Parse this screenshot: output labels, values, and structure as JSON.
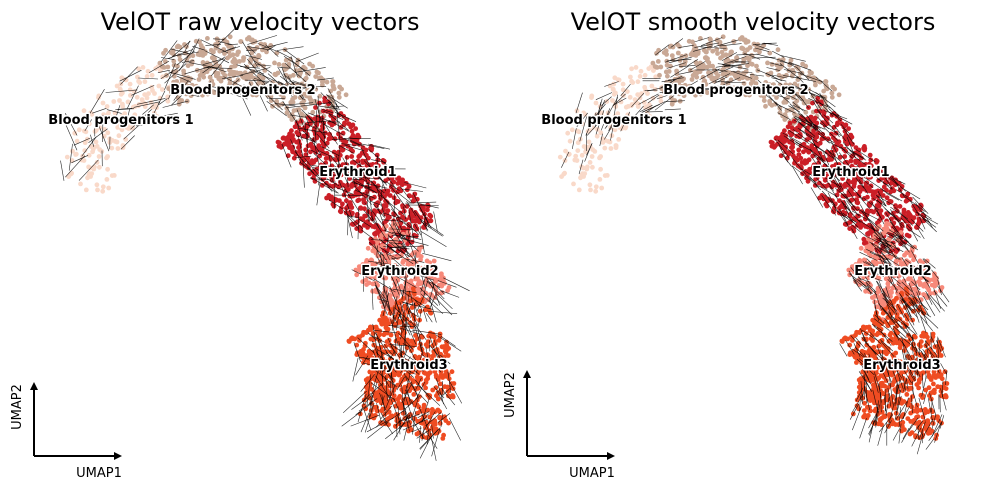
{
  "figure": {
    "colors": {
      "Blood progenitors 1": "#f9d9c9",
      "Blood progenitors 2": "#c9a895",
      "Erythroid1": "#cb1f27",
      "Erythroid2": "#f7897a",
      "Erythroid3": "#ef4c22"
    },
    "arrow_color": "#000000",
    "axis_labels": {
      "x": "UMAP1",
      "y": "UMAP2"
    }
  },
  "chart_data": [
    {
      "type": "scatter",
      "title": "VelOT raw velocity vectors",
      "xlabel": "UMAP1",
      "ylabel": "UMAP2",
      "grid": false,
      "legend": "on data",
      "vector_style": "raw",
      "clusters": [
        {
          "name": "Blood progenitors 1",
          "label": "Blood progenitors 1",
          "center": [
            1.2,
            7.6
          ],
          "extent": [
            [
              0.9,
              6.9
            ],
            [
              2.5,
              9.0
            ]
          ],
          "approx_points": 180
        },
        {
          "name": "Blood progenitors 2",
          "label": "Blood progenitors 2",
          "center": [
            3.3,
            8.5
          ],
          "extent": [
            [
              2.5,
              7.6
            ],
            [
              5.3,
              9.2
            ]
          ],
          "approx_points": 420
        },
        {
          "name": "Erythroid1",
          "label": "Erythroid1",
          "center": [
            6.1,
            6.6
          ],
          "extent": [
            [
              5.2,
              5.1
            ],
            [
              7.3,
              8.0
            ]
          ],
          "approx_points": 620
        },
        {
          "name": "Erythroid2",
          "label": "Erythroid2",
          "center": [
            6.8,
            4.5
          ],
          "extent": [
            [
              6.3,
              3.8
            ],
            [
              7.5,
              5.2
            ]
          ],
          "approx_points": 300
        },
        {
          "name": "Erythroid3",
          "label": "Erythroid3",
          "center": [
            7.0,
            2.4
          ],
          "extent": [
            [
              6.3,
              0.9
            ],
            [
              7.8,
              3.8
            ]
          ],
          "approx_points": 640
        }
      ]
    },
    {
      "type": "scatter",
      "title": "VelOT smooth velocity vectors",
      "xlabel": "UMAP1",
      "ylabel": "UMAP2",
      "grid": false,
      "legend": "on data",
      "vector_style": "smooth",
      "clusters": [
        {
          "name": "Blood progenitors 1",
          "label": "Blood progenitors 1",
          "center": [
            1.2,
            7.6
          ],
          "extent": [
            [
              0.9,
              6.9
            ],
            [
              2.5,
              9.0
            ]
          ],
          "approx_points": 180
        },
        {
          "name": "Blood progenitors 2",
          "label": "Blood progenitors 2",
          "center": [
            3.3,
            8.5
          ],
          "extent": [
            [
              2.5,
              7.6
            ],
            [
              5.3,
              9.2
            ]
          ],
          "approx_points": 420
        },
        {
          "name": "Erythroid1",
          "label": "Erythroid1",
          "center": [
            6.1,
            6.6
          ],
          "extent": [
            [
              5.2,
              5.1
            ],
            [
              7.3,
              8.0
            ]
          ],
          "approx_points": 620
        },
        {
          "name": "Erythroid2",
          "label": "Erythroid2",
          "center": [
            6.8,
            4.5
          ],
          "extent": [
            [
              6.3,
              3.8
            ],
            [
              7.5,
              5.2
            ]
          ],
          "approx_points": 300
        },
        {
          "name": "Erythroid3",
          "label": "Erythroid3",
          "center": [
            7.0,
            2.4
          ],
          "extent": [
            [
              6.3,
              0.9
            ],
            [
              7.8,
              3.8
            ]
          ],
          "approx_points": 640
        }
      ]
    }
  ]
}
